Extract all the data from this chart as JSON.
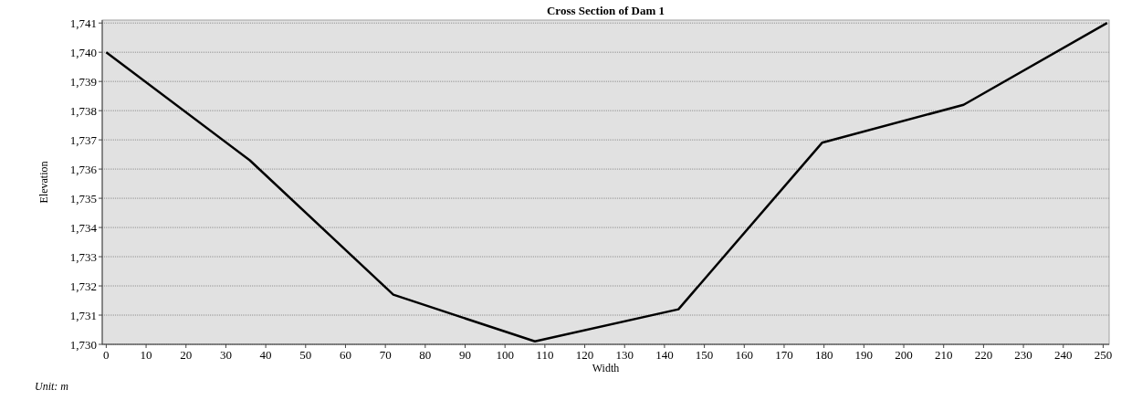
{
  "chart_data": {
    "type": "line",
    "title": "Cross Section of Dam 1",
    "xlabel": "Width",
    "ylabel": "Elevation",
    "annotations": [
      "Unit: m"
    ],
    "x": [
      0,
      36,
      72,
      107.5,
      143.5,
      179.5,
      215,
      251
    ],
    "series": [
      {
        "color": "#000000",
        "values": [
          1740,
          1736.3,
          1731.7,
          1730.1,
          1731.2,
          1736.9,
          1738.2,
          1741
        ]
      }
    ],
    "xlim": [
      -1,
      251.5
    ],
    "xticks": [
      0,
      10,
      20,
      30,
      40,
      50,
      60,
      70,
      80,
      90,
      100,
      110,
      120,
      130,
      140,
      150,
      160,
      170,
      180,
      190,
      200,
      210,
      220,
      230,
      240,
      250
    ],
    "ylim": [
      1730,
      1741.1
    ],
    "yticks": [
      {
        "value": 1730,
        "label": "1,730"
      },
      {
        "value": 1731,
        "label": "1,731"
      },
      {
        "value": 1732,
        "label": "1,732"
      },
      {
        "value": 1733,
        "label": "1,733"
      },
      {
        "value": 1734,
        "label": "1,734"
      },
      {
        "value": 1735,
        "label": "1,735"
      },
      {
        "value": 1736,
        "label": "1,736"
      },
      {
        "value": 1737,
        "label": "1,737"
      },
      {
        "value": 1738,
        "label": "1,738"
      },
      {
        "value": 1739,
        "label": "1,739"
      },
      {
        "value": 1740,
        "label": "1,740"
      },
      {
        "value": 1741,
        "label": "1,741"
      }
    ],
    "grid": "y",
    "marker": "none",
    "line_style": "solid"
  }
}
